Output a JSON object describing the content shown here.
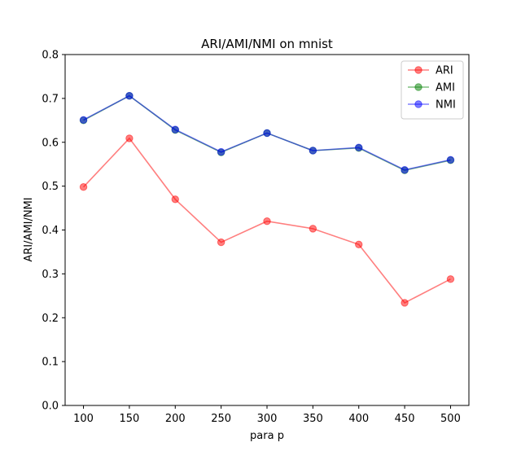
{
  "chart_data": {
    "type": "line",
    "title": "ARI/AMI/NMI on mnist",
    "xlabel": "para p",
    "ylabel": "ARI/AMI/NMI",
    "x": [
      100,
      150,
      200,
      250,
      300,
      350,
      400,
      450,
      500
    ],
    "xlim": [
      80,
      520
    ],
    "ylim": [
      0.0,
      0.8
    ],
    "xticks": [
      "100",
      "150",
      "200",
      "250",
      "300",
      "350",
      "400",
      "450",
      "500"
    ],
    "yticks": [
      "0.0",
      "0.1",
      "0.2",
      "0.3",
      "0.4",
      "0.5",
      "0.6",
      "0.7",
      "0.8"
    ],
    "grid": false,
    "legend_position": "top-right",
    "series": [
      {
        "name": "ARI",
        "color": "#ff0000",
        "values": [
          0.498,
          0.609,
          0.47,
          0.372,
          0.42,
          0.403,
          0.367,
          0.234,
          0.288
        ]
      },
      {
        "name": "AMI",
        "color": "#008000",
        "values": [
          0.65,
          0.706,
          0.628,
          0.577,
          0.621,
          0.581,
          0.587,
          0.536,
          0.559
        ]
      },
      {
        "name": "NMI",
        "color": "#0000ff",
        "values": [
          0.651,
          0.706,
          0.629,
          0.578,
          0.621,
          0.581,
          0.588,
          0.537,
          0.56
        ]
      }
    ]
  }
}
